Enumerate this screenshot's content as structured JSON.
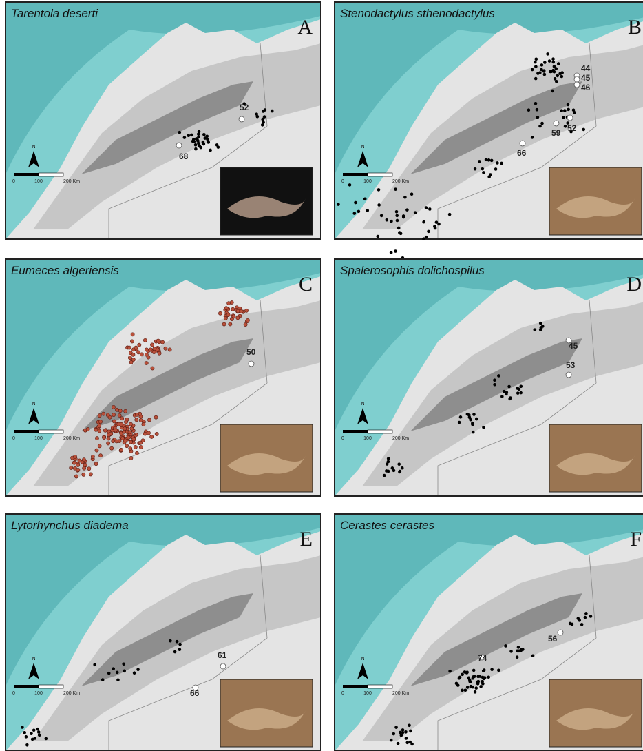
{
  "panels": [
    {
      "species": "Tarentola deserti",
      "letter": "A",
      "localities": [
        "52",
        "68"
      ]
    },
    {
      "species": "Stenodactylus sthenodactylus",
      "letter": "B",
      "localities": [
        "44",
        "45",
        "46",
        "59",
        "52",
        "66"
      ]
    },
    {
      "species": "Eumeces algeriensis",
      "letter": "C",
      "localities": [
        "50"
      ]
    },
    {
      "species": "Spalerosophis dolichospilus",
      "letter": "D",
      "localities": [
        "45",
        "53"
      ]
    },
    {
      "species": "Lytorhynchus diadema",
      "letter": "E",
      "localities": [
        "61",
        "66"
      ]
    },
    {
      "species": "Cerastes cerastes",
      "letter": "F",
      "localities": [
        "56",
        "74"
      ]
    }
  ],
  "scale_bar": {
    "north": "N",
    "ticks": [
      "0",
      "100",
      "200 Km"
    ]
  }
}
